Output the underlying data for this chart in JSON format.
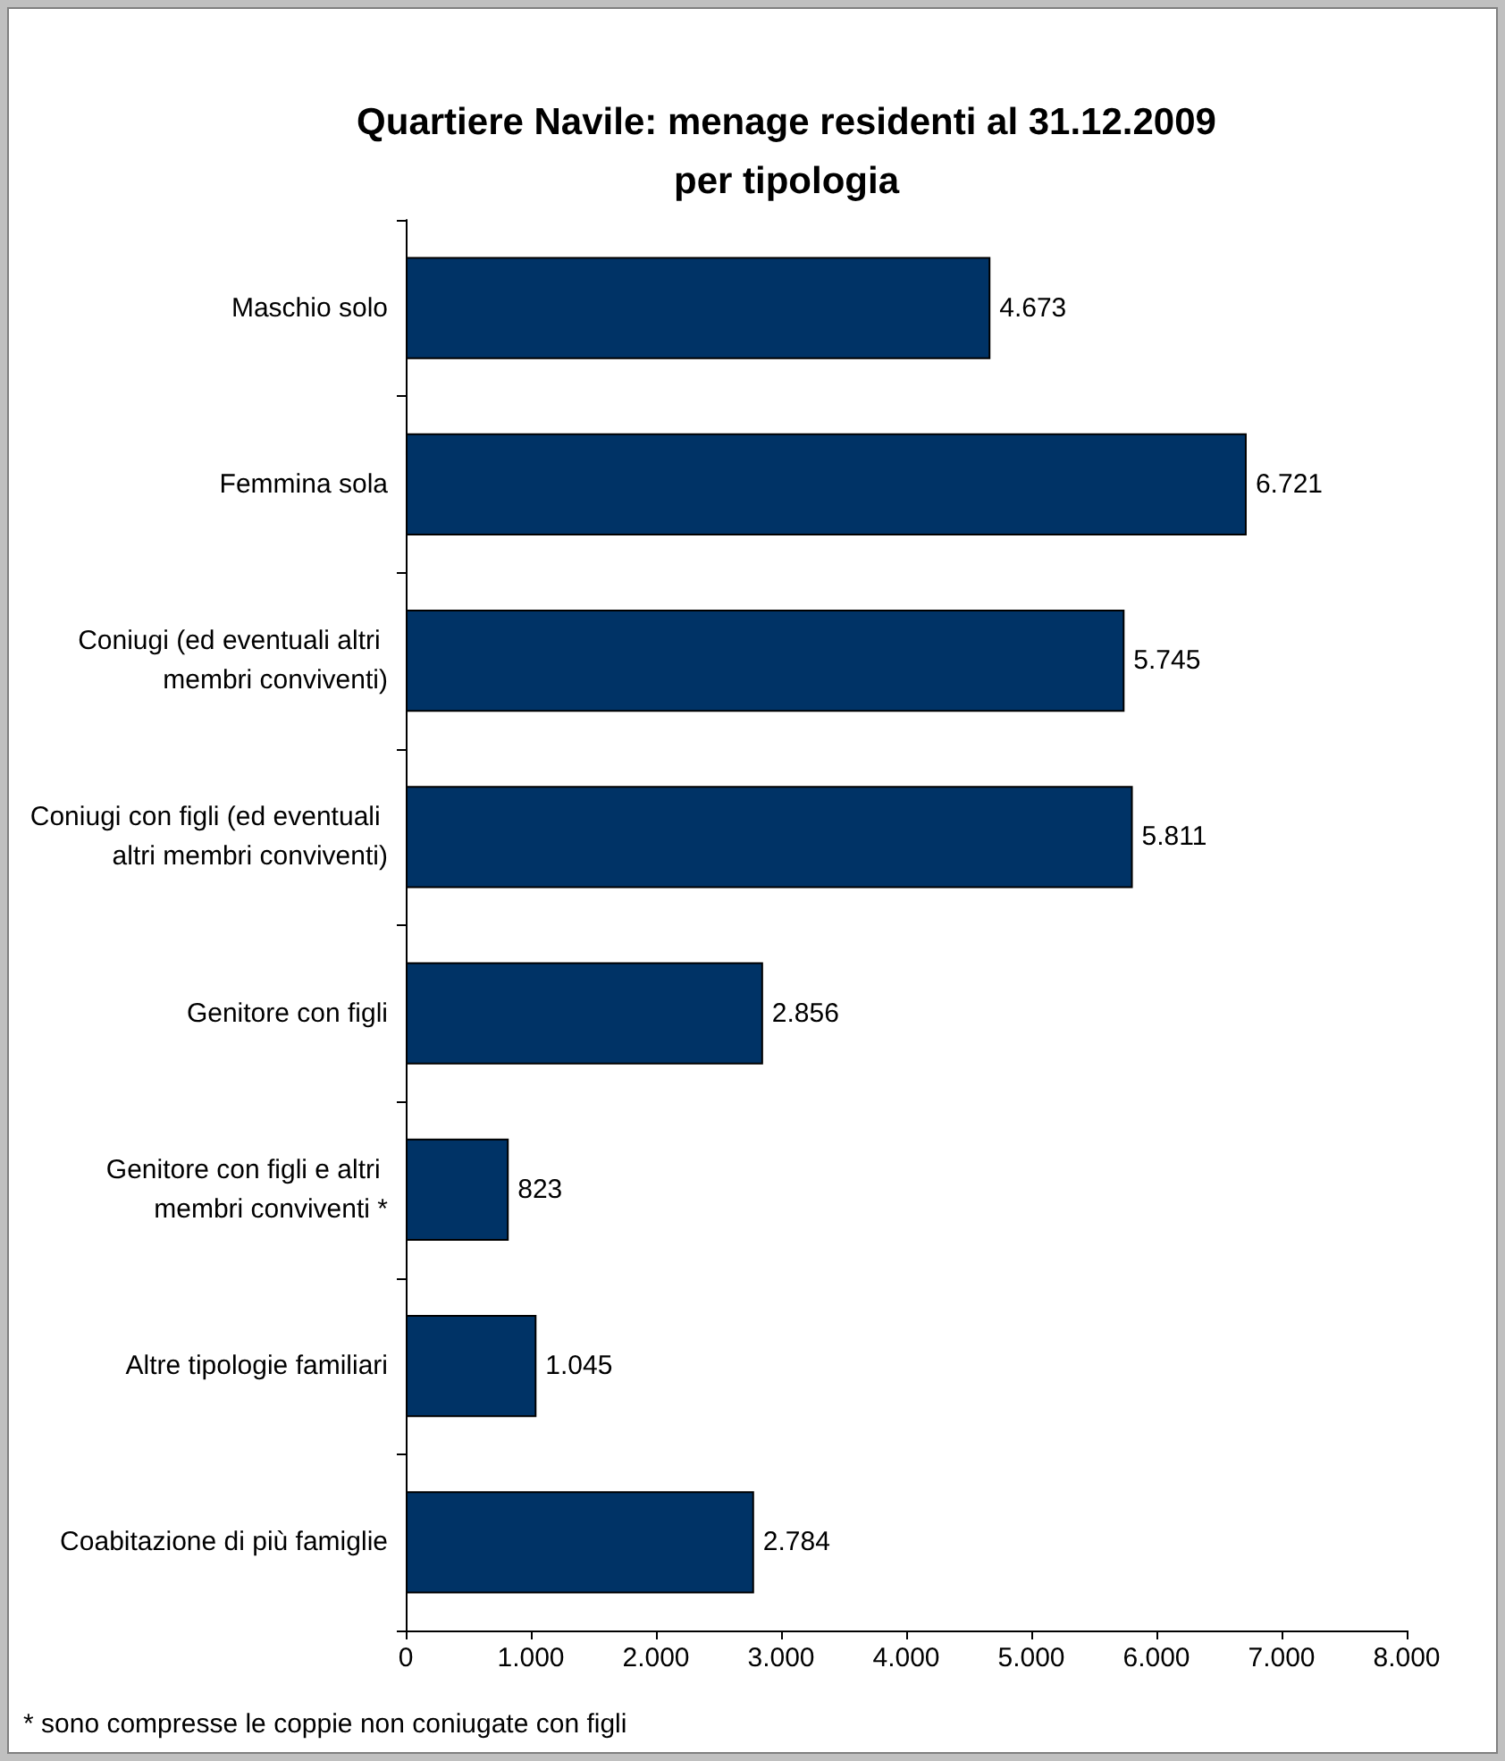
{
  "chart_data": {
    "type": "bar",
    "orientation": "horizontal",
    "title": "Quartiere Navile: menage residenti al 31.12.2009\nper tipologia",
    "categories": [
      "Maschio solo",
      "Femmina sola",
      "Coniugi (ed eventuali altri membri conviventi)",
      "Coniugi con figli (ed eventuali altri membri conviventi)",
      "Genitore con figli",
      "Genitore con figli e altri membri conviventi *",
      "Altre tipologie familiari",
      "Coabitazione di più famiglie"
    ],
    "values": [
      4673,
      6721,
      5745,
      5811,
      2856,
      823,
      1045,
      2784
    ],
    "value_labels": [
      "4.673",
      "6.721",
      "5.745",
      "5.811",
      "2.856",
      "823",
      "1.045",
      "2.784"
    ],
    "color": "#003366",
    "xlim": [
      0,
      8000
    ],
    "xticks": [
      {
        "value": 0,
        "label": "0"
      },
      {
        "value": 1000,
        "label": "1.000"
      },
      {
        "value": 2000,
        "label": "2.000"
      },
      {
        "value": 3000,
        "label": "3.000"
      },
      {
        "value": 4000,
        "label": "4.000"
      },
      {
        "value": 5000,
        "label": "5.000"
      },
      {
        "value": 6000,
        "label": "6.000"
      },
      {
        "value": 7000,
        "label": "7.000"
      },
      {
        "value": 8000,
        "label": "8.000"
      }
    ],
    "annotations": [
      "* sono compresse le coppie non coniugate con figli"
    ]
  }
}
